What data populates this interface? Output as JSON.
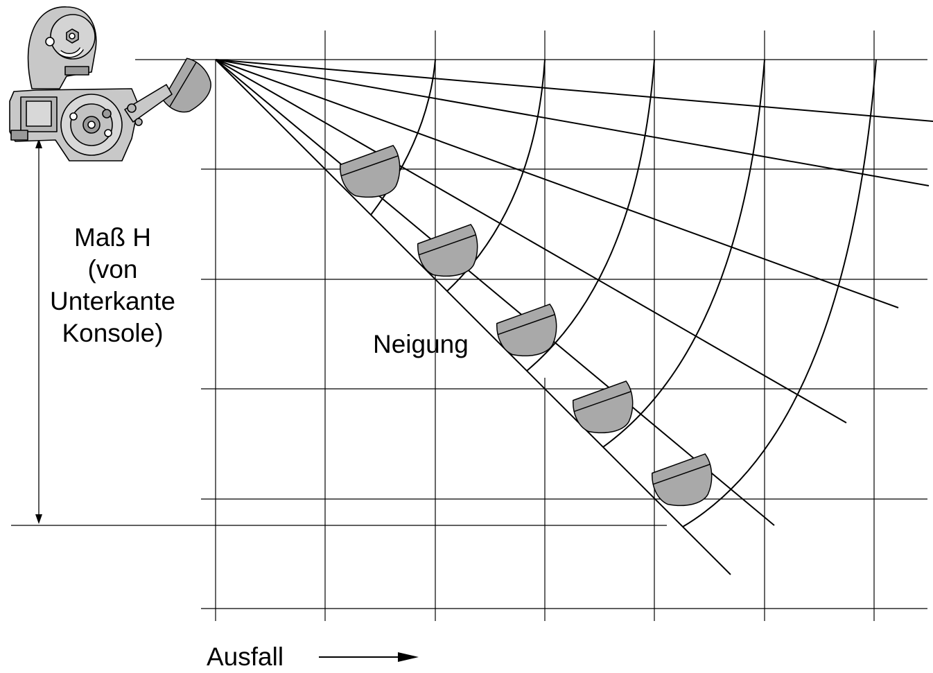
{
  "labels": {
    "height_line1": "Maß H",
    "height_line2": "(von",
    "height_line3": "Unterkante",
    "height_line4": "Konsole)",
    "tilt": "Neigung",
    "offset": "Ausfall"
  },
  "colors": {
    "ink": "#000000",
    "brush_fill": "#a9a9a9",
    "bracket_fill": "#c8c8c8",
    "bracket_dark": "#9a9a9a",
    "background": "#ffffff"
  },
  "icons": {
    "bracket": "mounting-bracket-icon",
    "brush": "brush-head-icon",
    "arrow": "arrow-right-icon"
  }
}
